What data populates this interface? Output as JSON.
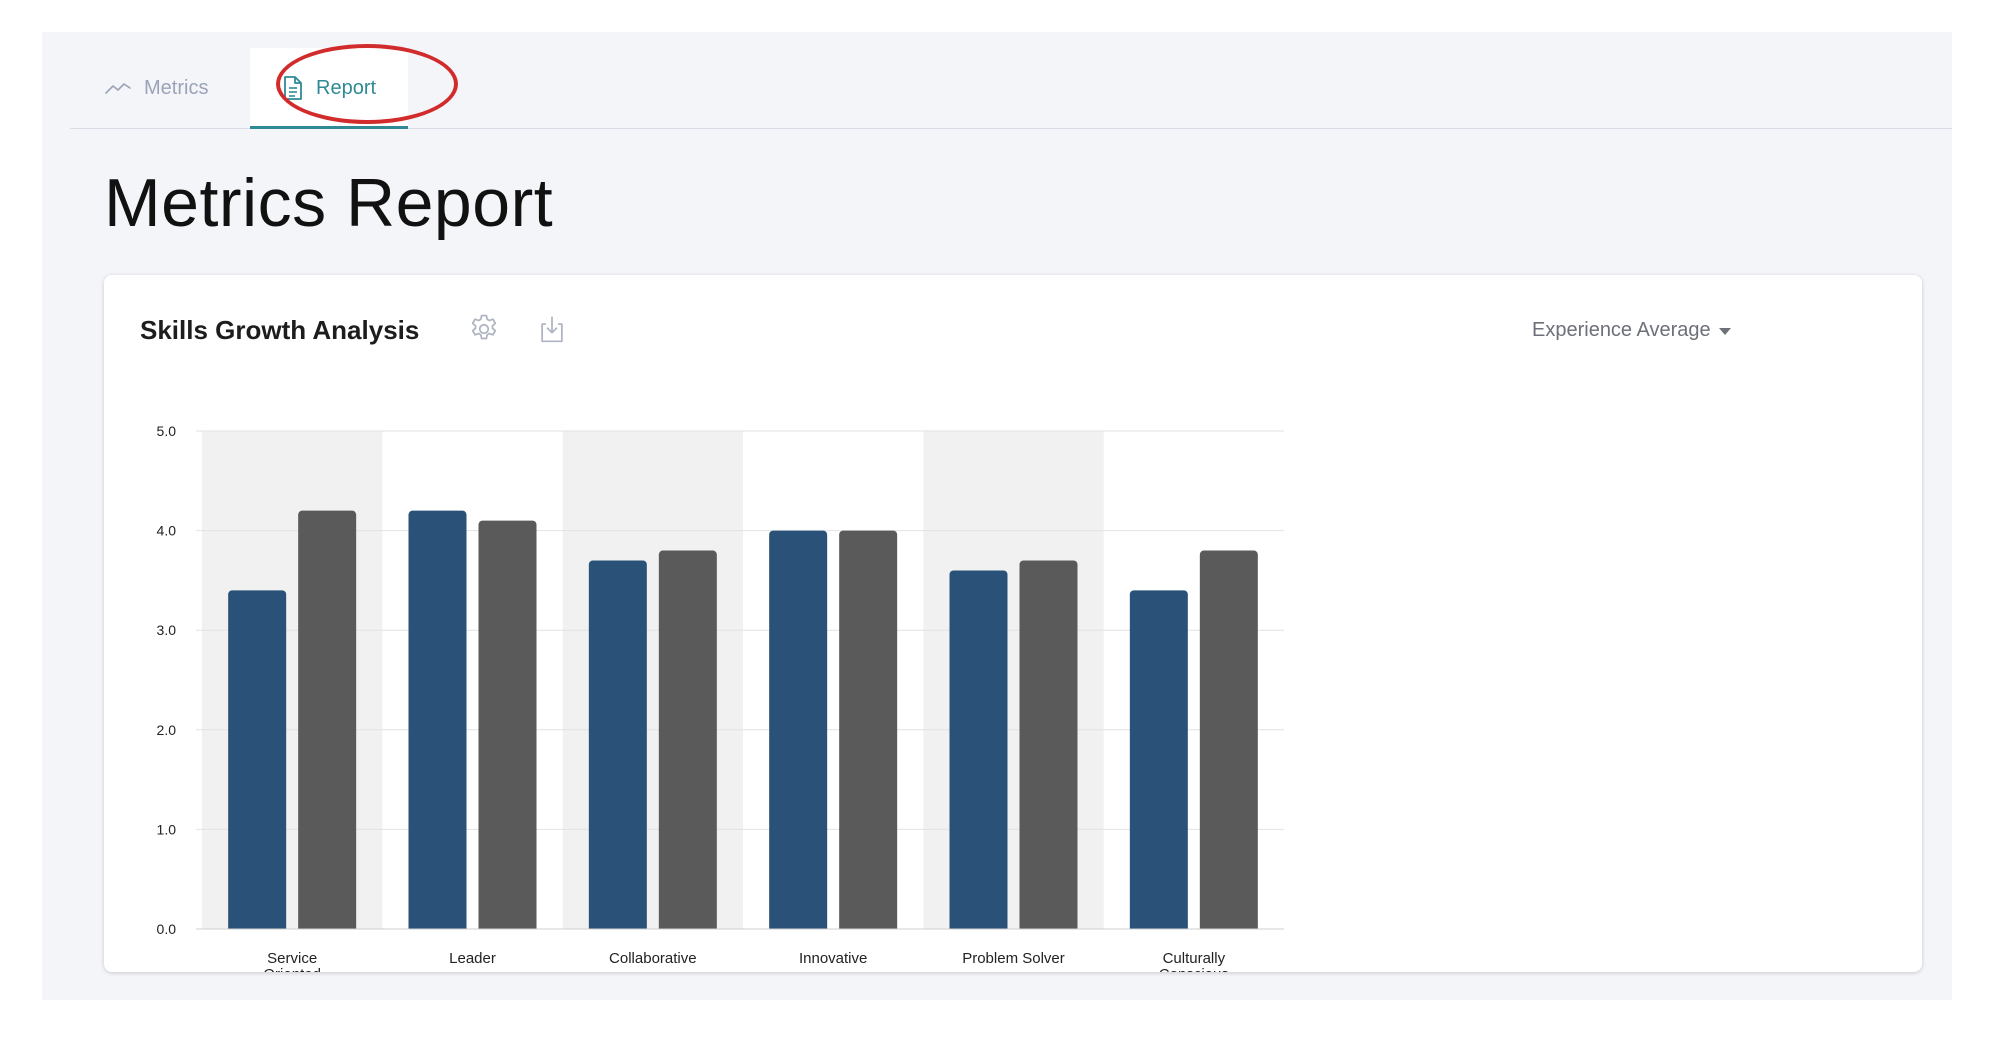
{
  "tabs": {
    "metrics_label": "Metrics",
    "report_label": "Report"
  },
  "page": {
    "title": "Metrics Report"
  },
  "card": {
    "title": "Skills Growth Analysis",
    "settings_icon": "gear-icon",
    "download_icon": "download-icon",
    "dropdown_value": "Experience Average"
  },
  "colors": {
    "accent": "#2f8a96",
    "series_primary": "#2a5279",
    "series_secondary": "#5a5a5a",
    "annotation": "#d22b2b"
  },
  "chart_data": {
    "type": "bar",
    "categories": [
      [
        "Service",
        "Oriented"
      ],
      [
        "Leader"
      ],
      [
        "Collaborative"
      ],
      [
        "Innovative"
      ],
      [
        "Problem Solver"
      ],
      [
        "Culturally",
        "Conscious"
      ]
    ],
    "series": [
      {
        "values": [
          3.4,
          4.2,
          3.7,
          4.0,
          3.6,
          3.4
        ],
        "color": "#2a5279"
      },
      {
        "values": [
          4.2,
          4.1,
          3.8,
          4.0,
          3.7,
          3.8
        ],
        "color": "#5a5a5a"
      }
    ],
    "yticks": [
      "0.0",
      "1.0",
      "2.0",
      "3.0",
      "4.0",
      "5.0"
    ],
    "ylim": [
      0,
      5
    ],
    "grid": true,
    "legend": "none",
    "alternating_band": true
  }
}
